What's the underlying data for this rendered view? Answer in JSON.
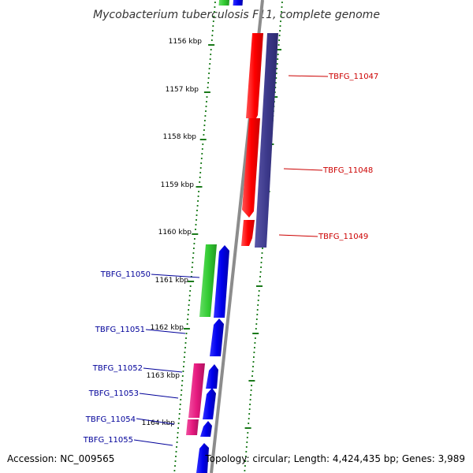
{
  "title": "Mycobacterium tuberculosis F11, complete genome",
  "footer": {
    "accession": "Accession: NC_009565",
    "summary": "Topology: circular; Length: 4,424,435 bp; Genes: 3,989"
  },
  "colors": {
    "backbone": "#8c8c8c",
    "tick": "#1a7a1a",
    "forward_label": "#cc0000",
    "reverse_label": "#000099",
    "red": "#ff0000",
    "navy": "#3d3a8c",
    "green": "#33cc33",
    "blue": "#0000ee",
    "magenta": "#e6197f"
  },
  "ruler": [
    {
      "label": "1156 kbp"
    },
    {
      "label": "1157 kbp"
    },
    {
      "label": "1158 kbp"
    },
    {
      "label": "1159 kbp"
    },
    {
      "label": "1160 kbp"
    },
    {
      "label": "1161 kbp"
    },
    {
      "label": "1162 kbp"
    },
    {
      "label": "1163 kbp"
    },
    {
      "label": "1164 kbp"
    }
  ],
  "gene_labels": [
    {
      "text": "TBFG_11047",
      "strand": "forward"
    },
    {
      "text": "TBFG_11048",
      "strand": "forward"
    },
    {
      "text": "TBFG_11049",
      "strand": "forward"
    },
    {
      "text": "TBFG_11050",
      "strand": "reverse"
    },
    {
      "text": "TBFG_11051",
      "strand": "reverse"
    },
    {
      "text": "TBFG_11052",
      "strand": "reverse"
    },
    {
      "text": "TBFG_11053",
      "strand": "reverse"
    },
    {
      "text": "TBFG_11054",
      "strand": "reverse"
    },
    {
      "text": "TBFG_11055",
      "strand": "reverse"
    }
  ]
}
